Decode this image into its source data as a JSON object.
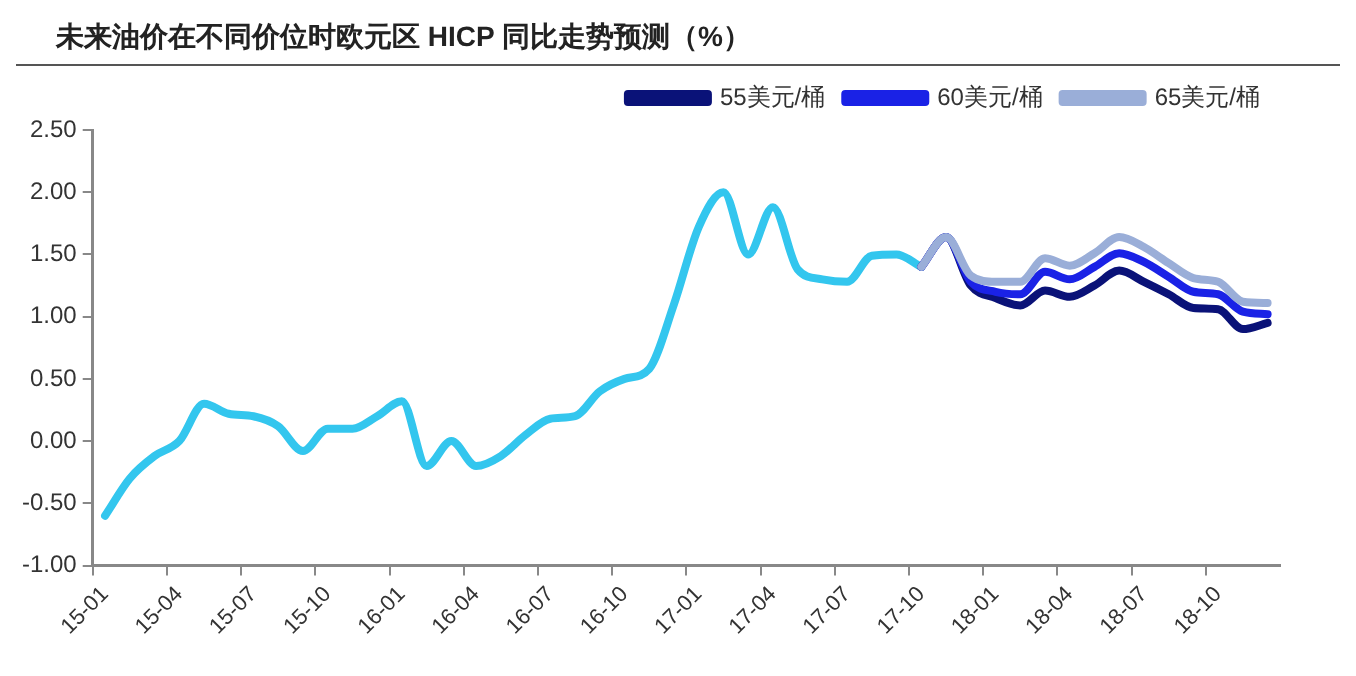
{
  "chart_data": {
    "type": "line",
    "title": "未来油价在不同价位时欧元区 HICP 同比走势预测（%）",
    "categories": [
      "15-01",
      null,
      null,
      "15-04",
      null,
      null,
      "15-07",
      null,
      null,
      "15-10",
      null,
      null,
      "16-01",
      null,
      null,
      "16-04",
      null,
      null,
      "16-07",
      null,
      null,
      "16-10",
      null,
      null,
      "17-01",
      null,
      null,
      "17-04",
      null,
      null,
      "17-07",
      null,
      null,
      "17-10",
      null,
      null,
      "18-01",
      null,
      null,
      "18-04",
      null,
      null,
      "18-07",
      null,
      null,
      "18-10",
      null,
      null
    ],
    "series": [
      {
        "color": "#33c6ee",
        "values": [
          -0.6,
          -0.3,
          -0.12,
          0.0,
          0.3,
          0.22,
          0.2,
          0.12,
          -0.08,
          0.1,
          0.1,
          0.2,
          0.32,
          -0.2,
          0.0,
          -0.2,
          -0.12,
          0.05,
          0.18,
          0.2,
          0.4,
          0.5,
          0.58,
          1.1,
          1.72,
          2.0,
          1.5,
          1.88,
          1.38,
          1.3,
          1.28,
          1.49,
          1.5,
          1.4,
          null,
          null,
          null,
          null,
          null,
          null,
          null,
          null,
          null,
          null,
          null,
          null,
          null,
          null
        ]
      },
      {
        "name": "55美元/桶",
        "color": "#0a1278",
        "values": [
          null,
          null,
          null,
          null,
          null,
          null,
          null,
          null,
          null,
          null,
          null,
          null,
          null,
          null,
          null,
          null,
          null,
          null,
          null,
          null,
          null,
          null,
          null,
          null,
          null,
          null,
          null,
          null,
          null,
          null,
          null,
          null,
          null,
          1.4,
          1.64,
          1.25,
          1.15,
          1.09,
          1.21,
          1.16,
          1.25,
          1.37,
          1.28,
          1.18,
          1.07,
          1.06,
          0.9,
          0.95
        ]
      },
      {
        "name": "60美元/桶",
        "color": "#1a22e6",
        "values": [
          null,
          null,
          null,
          null,
          null,
          null,
          null,
          null,
          null,
          null,
          null,
          null,
          null,
          null,
          null,
          null,
          null,
          null,
          null,
          null,
          null,
          null,
          null,
          null,
          null,
          null,
          null,
          null,
          null,
          null,
          null,
          null,
          null,
          1.4,
          1.64,
          1.28,
          1.2,
          1.18,
          1.36,
          1.3,
          1.4,
          1.51,
          1.44,
          1.32,
          1.2,
          1.18,
          1.04,
          1.02
        ]
      },
      {
        "name": "65美元/桶",
        "color": "#9aaed8",
        "values": [
          null,
          null,
          null,
          null,
          null,
          null,
          null,
          null,
          null,
          null,
          null,
          null,
          null,
          null,
          null,
          null,
          null,
          null,
          null,
          null,
          null,
          null,
          null,
          null,
          null,
          null,
          null,
          null,
          null,
          null,
          null,
          null,
          null,
          1.4,
          1.64,
          1.33,
          1.28,
          1.28,
          1.47,
          1.41,
          1.51,
          1.64,
          1.56,
          1.43,
          1.31,
          1.28,
          1.12,
          1.11
        ]
      }
    ],
    "ylim": [
      -1.0,
      2.5
    ],
    "yticks": [
      {
        "value": -1.0,
        "label": "-1.00"
      },
      {
        "value": -0.5,
        "label": "-0.50"
      },
      {
        "value": 0,
        "label": "0.00"
      },
      {
        "value": 0.5,
        "label": "0.50"
      },
      {
        "value": 1.0,
        "label": "1.00"
      },
      {
        "value": 1.5,
        "label": "1.50"
      },
      {
        "value": 2.0,
        "label": "2.00"
      },
      {
        "value": 2.5,
        "label": "2.50"
      }
    ],
    "grid": false,
    "legend": "top right",
    "marker": "none",
    "line_style": "solid"
  }
}
